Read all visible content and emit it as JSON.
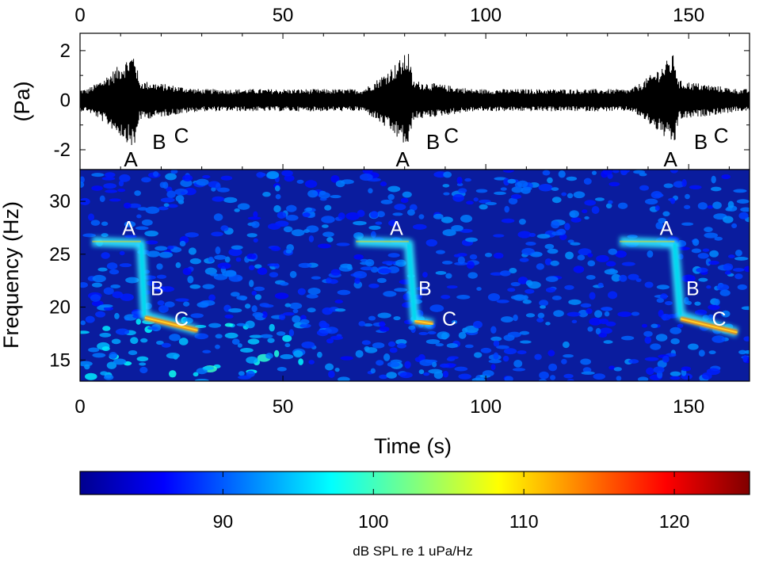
{
  "chart_data": [
    {
      "type": "line",
      "panel": "waveform",
      "ylabel": "(Pa)",
      "xlim": [
        0,
        165
      ],
      "ylim": [
        -2.8,
        2.7
      ],
      "x_ticks": [
        0,
        50,
        100,
        150
      ],
      "x_tick_labels": [
        "0",
        "50",
        "100",
        "150"
      ],
      "x_tick_labels_position": "top",
      "y_ticks": [
        -2,
        0,
        2
      ],
      "y_tick_labels": [
        "-2",
        "0",
        "2"
      ],
      "calls": [
        {
          "onset_s": 2,
          "peak_s": 13.5,
          "peak_amplitude_pa": 2.0
        },
        {
          "onset_s": 70,
          "peak_s": 81,
          "peak_amplitude_pa": 2.0
        },
        {
          "onset_s": 136,
          "peak_s": 146.5,
          "peak_amplitude_pa": 1.9
        }
      ],
      "background_amplitude_pa": 0.45,
      "annotations": [
        {
          "text": "A",
          "x": 12.5,
          "y": -2.35
        },
        {
          "text": "B",
          "x": 19.5,
          "y": -1.65
        },
        {
          "text": "C",
          "x": 25,
          "y": -1.4
        },
        {
          "text": "A",
          "x": 79.5,
          "y": -2.35
        },
        {
          "text": "B",
          "x": 87,
          "y": -1.65
        },
        {
          "text": "C",
          "x": 91.5,
          "y": -1.4
        },
        {
          "text": "A",
          "x": 145.5,
          "y": -2.35
        },
        {
          "text": "B",
          "x": 153,
          "y": -1.65
        },
        {
          "text": "C",
          "x": 158,
          "y": -1.4
        }
      ]
    },
    {
      "type": "heatmap",
      "panel": "spectrogram",
      "xlabel": "Time (s)",
      "ylabel": "Frequency (Hz)",
      "xlim": [
        0,
        165
      ],
      "ylim": [
        13,
        33
      ],
      "x_ticks": [
        0,
        50,
        100,
        150
      ],
      "x_tick_labels": [
        "0",
        "50",
        "100",
        "150"
      ],
      "y_ticks": [
        15,
        20,
        25,
        30
      ],
      "y_tick_labels": [
        "15",
        "20",
        "25",
        "30"
      ],
      "calls": [
        {
          "a_start_s": 3,
          "a_end_s": 15,
          "a_freq_hz": 26.2,
          "a_tail_end_s": 32,
          "b_top": [
            15,
            26
          ],
          "b_bottom": [
            16,
            19.2
          ],
          "c_start": [
            16,
            19
          ],
          "c_end": [
            29,
            17.8
          ]
        },
        {
          "a_start_s": 68,
          "a_end_s": 81,
          "a_freq_hz": 26.2,
          "a_tail_end_s": 97,
          "b_top": [
            81,
            26
          ],
          "b_bottom": [
            82.5,
            18.8
          ],
          "c_start": [
            82.5,
            18.7
          ],
          "c_end": [
            87,
            18.4
          ]
        },
        {
          "a_start_s": 133,
          "a_end_s": 146.5,
          "a_freq_hz": 26.2,
          "a_tail_end_s": 162,
          "b_top": [
            146.5,
            26
          ],
          "b_bottom": [
            148,
            19.2
          ],
          "c_start": [
            148,
            18.9
          ],
          "c_end": [
            162,
            17.6
          ]
        }
      ],
      "annotations": [
        {
          "text": "A",
          "x": 12,
          "y": 27.5
        },
        {
          "text": "B",
          "x": 19,
          "y": 21.8
        },
        {
          "text": "C",
          "x": 25,
          "y": 18.9
        },
        {
          "text": "A",
          "x": 78,
          "y": 27.5
        },
        {
          "text": "B",
          "x": 85,
          "y": 21.8
        },
        {
          "text": "C",
          "x": 91,
          "y": 18.9
        },
        {
          "text": "A",
          "x": 144.5,
          "y": 27.5
        },
        {
          "text": "B",
          "x": 151,
          "y": 21.8
        },
        {
          "text": "C",
          "x": 157.5,
          "y": 18.9
        }
      ]
    },
    {
      "type": "colorbar",
      "panel": "colorbar",
      "label": "dB SPL re 1 uPa/Hz",
      "range": [
        80.5,
        125
      ],
      "ticks": [
        90,
        100,
        110,
        120
      ],
      "tick_labels": [
        "90",
        "100",
        "110",
        "120"
      ],
      "colormap": "jet",
      "colormap_stops": [
        "#00008f",
        "#0000ff",
        "#00ffff",
        "#ffff00",
        "#ff0000",
        "#800000"
      ]
    }
  ]
}
